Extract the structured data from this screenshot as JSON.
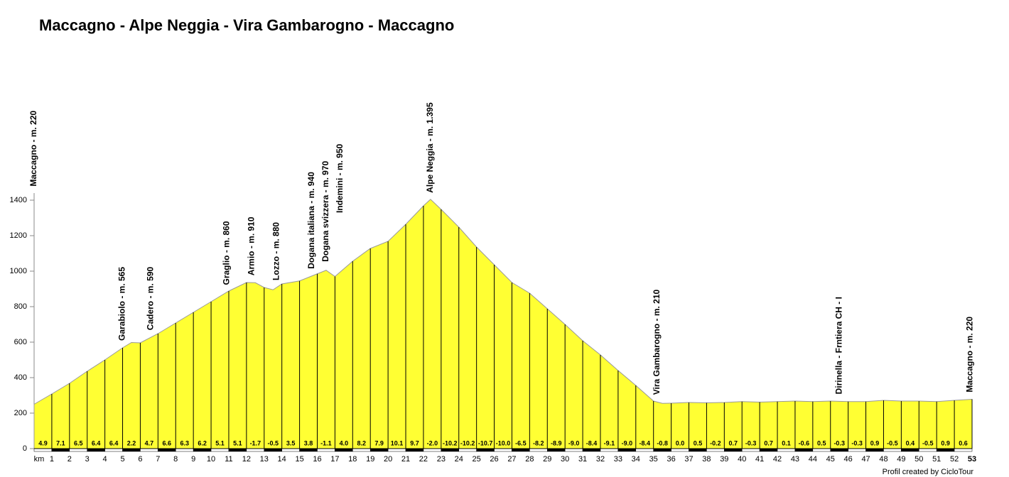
{
  "chart_data": {
    "type": "area",
    "title": "Maccagno - Alpe Neggia - Vira Gambarogno - Maccagno",
    "footer": "Profil created by CicloTour",
    "color": "#ffff33",
    "x": [
      0,
      1,
      2,
      3,
      4,
      5,
      5.5,
      6,
      7,
      8,
      9,
      10,
      11,
      12,
      12.5,
      13,
      13.5,
      14,
      15,
      16,
      16.5,
      17,
      18,
      19,
      20,
      21,
      22,
      22.4,
      23,
      24,
      25,
      26,
      27,
      28,
      29,
      30,
      31,
      32,
      33,
      34,
      35,
      35.5,
      36,
      37,
      38,
      39,
      40,
      41,
      42,
      43,
      44,
      45,
      46,
      47,
      48,
      49,
      50,
      51,
      52,
      53
    ],
    "values": [
      250,
      308,
      368,
      436,
      500,
      568,
      598,
      596,
      648,
      708,
      768,
      828,
      888,
      936,
      935,
      908,
      895,
      928,
      945,
      985,
      1005,
      970,
      1056,
      1128,
      1168,
      1264,
      1368,
      1405,
      1348,
      1248,
      1136,
      1036,
      936,
      876,
      788,
      700,
      608,
      528,
      440,
      356,
      268,
      255,
      256,
      260,
      258,
      260,
      265,
      262,
      265,
      268,
      265,
      268,
      265,
      265,
      272,
      268,
      268,
      265,
      272,
      278
    ],
    "xlim": [
      0,
      53
    ],
    "xticks": [
      {
        "value": 0,
        "label": "km"
      },
      1,
      2,
      3,
      4,
      5,
      6,
      7,
      8,
      9,
      10,
      11,
      12,
      13,
      14,
      15,
      16,
      17,
      18,
      19,
      20,
      21,
      22,
      23,
      24,
      25,
      26,
      27,
      28,
      29,
      30,
      31,
      32,
      33,
      34,
      35,
      36,
      37,
      38,
      39,
      40,
      41,
      42,
      43,
      44,
      45,
      46,
      47,
      48,
      49,
      50,
      51,
      52,
      53
    ],
    "ylim": [
      0,
      1400
    ],
    "yticks": [
      0,
      200,
      400,
      600,
      800,
      1000,
      1200,
      1400
    ],
    "gradients": [
      "4.9",
      "7.1",
      "6.5",
      "6.4",
      "6.4",
      "2.2",
      "4.7",
      "6.6",
      "6.3",
      "6.2",
      "5.1",
      "5.1",
      "-1.7",
      "-0.5",
      "3.5",
      "3.8",
      "-1.1",
      "4.0",
      "8.2",
      "7.9",
      "10.1",
      "9.7",
      "-2.0",
      "-10.2",
      "-10.2",
      "-10.7",
      "-10.0",
      "-6.5",
      "-8.2",
      "-8.9",
      "-9.0",
      "-8.4",
      "-9.1",
      "-9.0",
      "-8.4",
      "-0.8",
      "0.0",
      "0.5",
      "-0.2",
      "0.7",
      "-0.3",
      "0.7",
      "0.1",
      "-0.6",
      "0.5",
      "-0.3",
      "-0.3",
      "0.9",
      "-0.5",
      "0.4",
      "-0.5",
      "0.9",
      "0.6"
    ],
    "waypoints": [
      {
        "x": 0,
        "label": "Maccagno - m. 220"
      },
      {
        "x": 5,
        "label": "Garabiolo - m. 565"
      },
      {
        "x": 6.6,
        "label": "Cadero - m. 590"
      },
      {
        "x": 10.9,
        "label": "Graglio - m. 860"
      },
      {
        "x": 12.3,
        "label": "Armio - m. 910"
      },
      {
        "x": 13.7,
        "label": "Lozzo - m. 880"
      },
      {
        "x": 15.7,
        "label": "Dogana italiana - m. 940"
      },
      {
        "x": 16.5,
        "label": "Dogana svizzera - m. 970"
      },
      {
        "x": 17.3,
        "label": "Indemini - m. 950"
      },
      {
        "x": 22.4,
        "label": "Alpe Neggia - m. 1.395"
      },
      {
        "x": 35.2,
        "label": "Vira Gambarogno - m. 210"
      },
      {
        "x": 45.5,
        "label": "Dirinella - Frntiera CH - I"
      },
      {
        "x": 52.9,
        "label": "Maccagno - m. 220"
      }
    ]
  }
}
